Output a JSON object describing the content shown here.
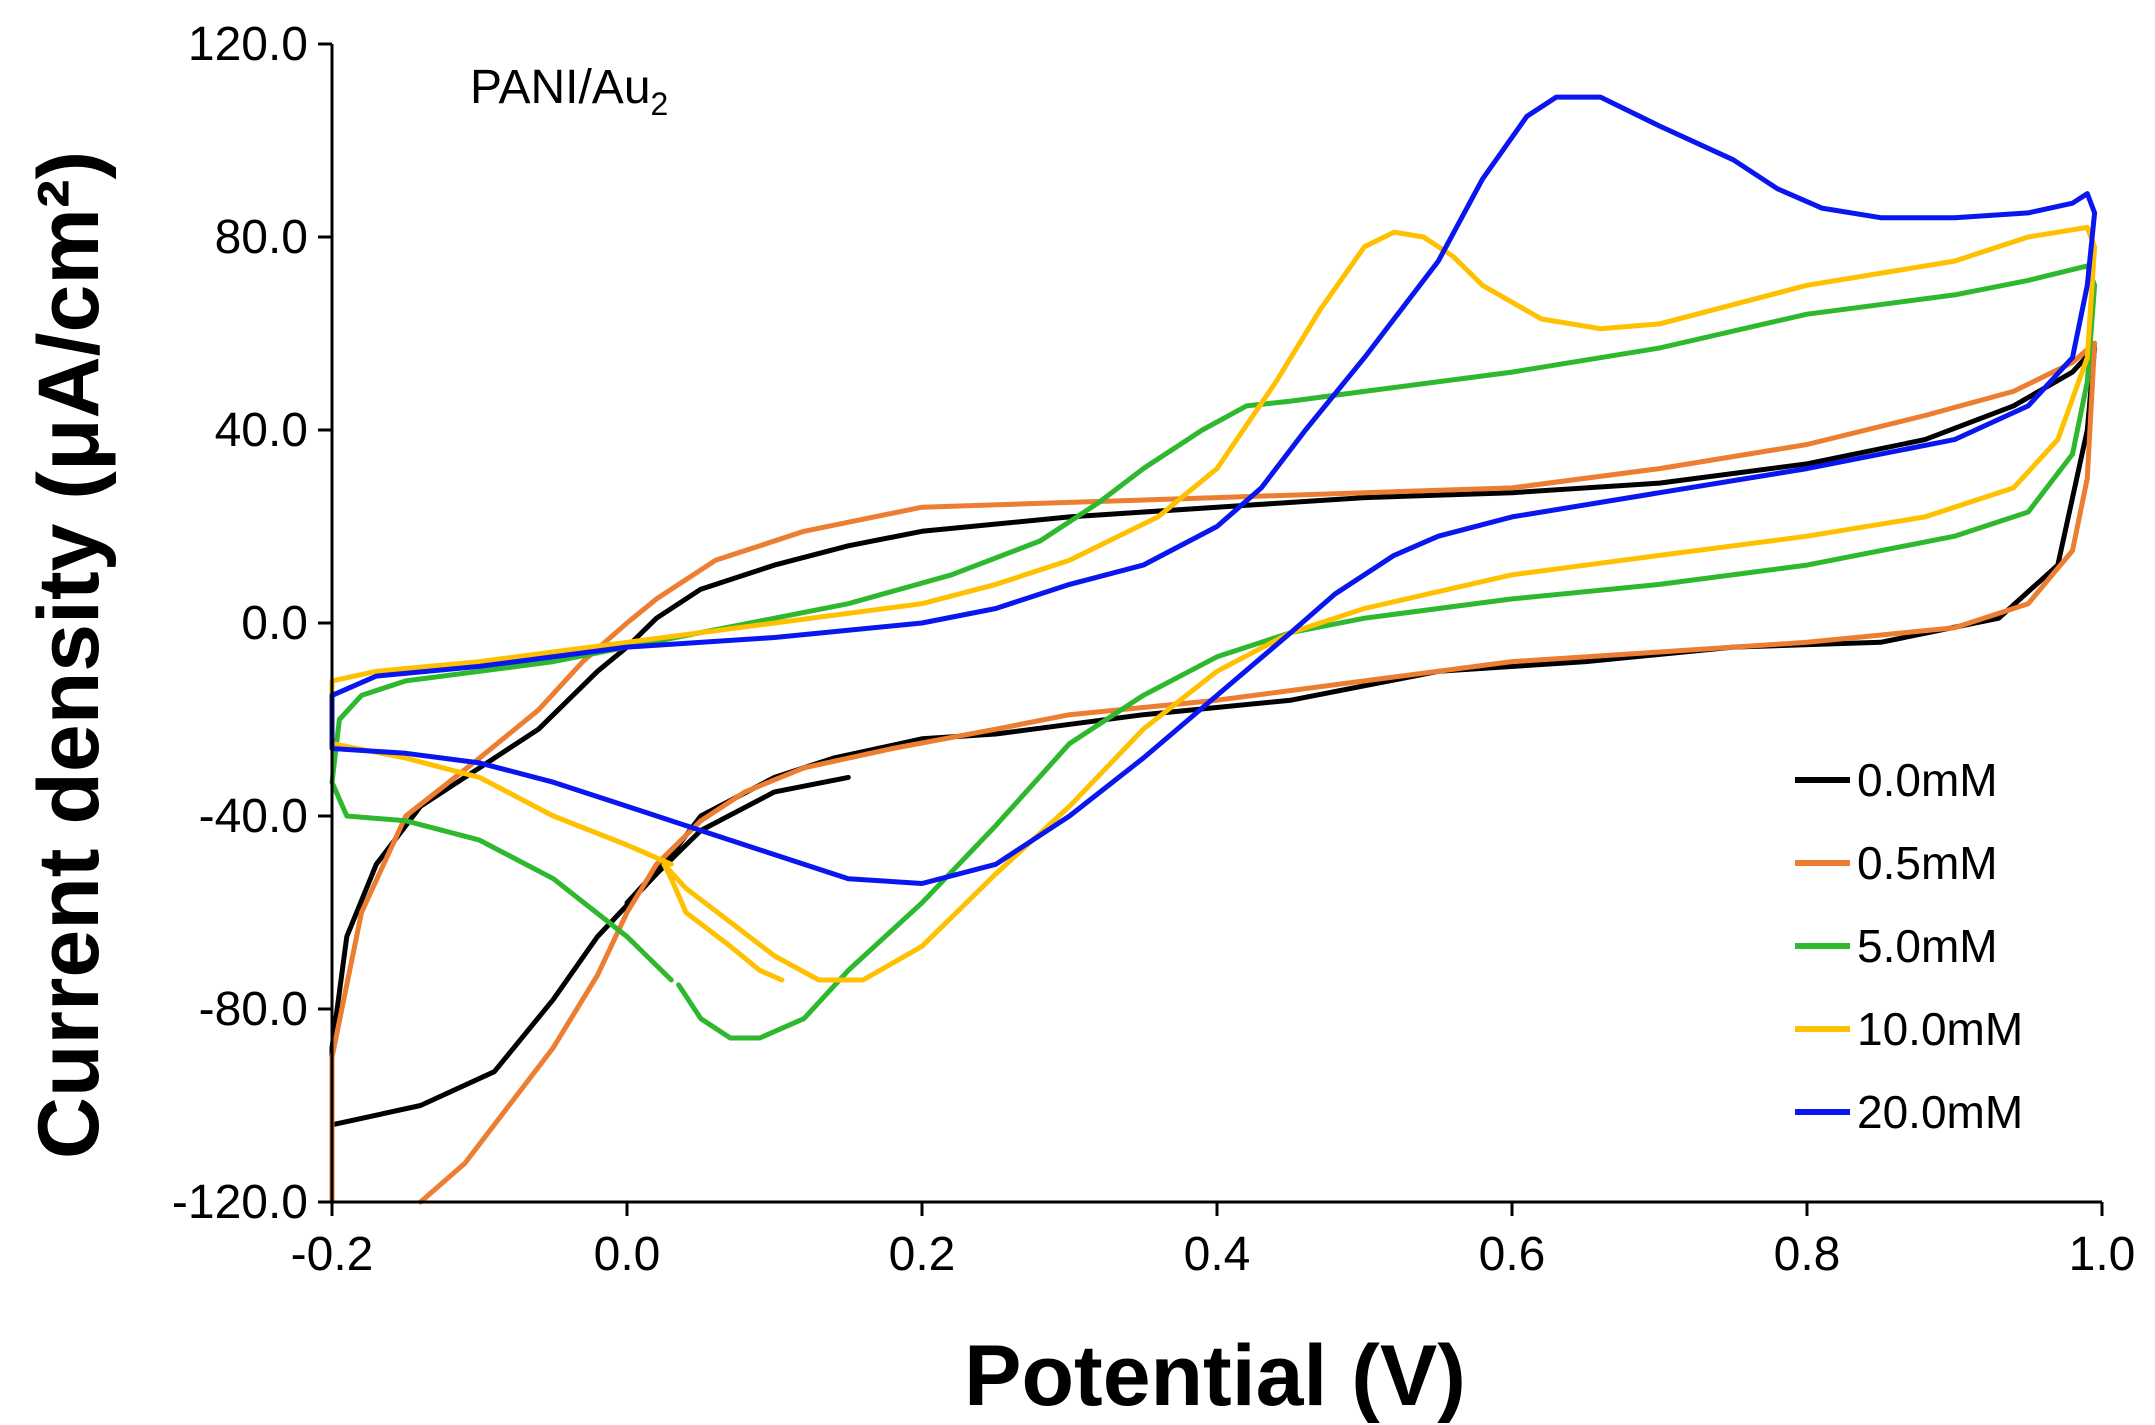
{
  "chart_data": {
    "type": "line",
    "title": "",
    "annotation": {
      "main": "PANI/Au",
      "sub": "2"
    },
    "xlabel": "Potential (V)",
    "ylabel": "Current density (μA/cm²)",
    "xlim": [
      -0.2,
      1.0
    ],
    "ylim": [
      -120,
      120
    ],
    "x_ticks": [
      -0.2,
      0.0,
      0.2,
      0.4,
      0.6,
      0.8,
      1.0
    ],
    "x_tick_labels": [
      "-0.2",
      "0.0",
      "0.2",
      "0.4",
      "0.6",
      "0.8",
      "1.0"
    ],
    "y_ticks": [
      -120,
      -80,
      -40,
      0,
      40,
      80,
      120
    ],
    "y_tick_labels": [
      "-120.0",
      "-80.0",
      "-40.0",
      "0.0",
      "40.0",
      "80.0",
      "120.0"
    ],
    "grid": false,
    "legend_position": "bottom-right",
    "series": [
      {
        "name": "0.0mM",
        "color": "#000000",
        "points": [
          [
            0.15,
            -32
          ],
          [
            0.1,
            -35
          ],
          [
            0.05,
            -43
          ],
          [
            0.02,
            -52
          ],
          [
            -0.02,
            -65
          ],
          [
            -0.05,
            -78
          ],
          [
            -0.09,
            -93
          ],
          [
            -0.14,
            -100
          ],
          [
            -0.2,
            -104
          ],
          [
            -0.2,
            -112
          ],
          [
            -0.2,
            -88
          ],
          [
            -0.19,
            -65
          ],
          [
            -0.17,
            -50
          ],
          [
            -0.14,
            -38
          ],
          [
            -0.1,
            -30
          ],
          [
            -0.06,
            -22
          ],
          [
            -0.02,
            -10
          ],
          [
            0.0,
            -5
          ],
          [
            0.02,
            1
          ],
          [
            0.05,
            7
          ],
          [
            0.1,
            12
          ],
          [
            0.15,
            16
          ],
          [
            0.2,
            19
          ],
          [
            0.3,
            22
          ],
          [
            0.4,
            24
          ],
          [
            0.5,
            26
          ],
          [
            0.6,
            27
          ],
          [
            0.7,
            29
          ],
          [
            0.8,
            33
          ],
          [
            0.88,
            38
          ],
          [
            0.94,
            45
          ],
          [
            0.98,
            52
          ],
          [
            0.995,
            57
          ],
          [
            0.99,
            40
          ],
          [
            0.97,
            12
          ],
          [
            0.93,
            1
          ],
          [
            0.85,
            -4
          ],
          [
            0.75,
            -5
          ],
          [
            0.65,
            -8
          ],
          [
            0.55,
            -10
          ],
          [
            0.45,
            -16
          ],
          [
            0.35,
            -19
          ],
          [
            0.25,
            -23
          ],
          [
            0.2,
            -24
          ],
          [
            0.14,
            -28
          ],
          [
            0.1,
            -32
          ],
          [
            0.05,
            -40
          ],
          [
            0.03,
            -48
          ],
          [
            0.0,
            -58
          ]
        ]
      },
      {
        "name": "0.5mM",
        "color": "#ED7D31",
        "points": [
          [
            -0.14,
            -120
          ],
          [
            -0.11,
            -112
          ],
          [
            -0.08,
            -100
          ],
          [
            -0.05,
            -88
          ],
          [
            -0.02,
            -73
          ],
          [
            0.0,
            -60
          ],
          [
            0.02,
            -50
          ],
          [
            0.05,
            -41
          ],
          [
            0.08,
            -35
          ],
          [
            0.12,
            -30
          ],
          [
            0.18,
            -26
          ],
          [
            0.25,
            -22
          ],
          [
            0.3,
            -19
          ],
          [
            0.4,
            -16
          ],
          [
            0.5,
            -12
          ],
          [
            0.6,
            -8
          ],
          [
            0.7,
            -6
          ],
          [
            0.8,
            -4
          ],
          [
            0.9,
            -1
          ],
          [
            0.95,
            4
          ],
          [
            0.98,
            15
          ],
          [
            0.99,
            30
          ],
          [
            0.995,
            58
          ],
          [
            0.98,
            54
          ],
          [
            0.94,
            48
          ],
          [
            0.88,
            43
          ],
          [
            0.8,
            37
          ],
          [
            0.7,
            32
          ],
          [
            0.6,
            28
          ],
          [
            0.5,
            27
          ],
          [
            0.4,
            26
          ],
          [
            0.3,
            25
          ],
          [
            0.2,
            24
          ],
          [
            0.12,
            19
          ],
          [
            0.06,
            13
          ],
          [
            0.02,
            5
          ],
          [
            0.0,
            0
          ],
          [
            -0.03,
            -8
          ],
          [
            -0.06,
            -18
          ],
          [
            -0.1,
            -28
          ],
          [
            -0.15,
            -40
          ],
          [
            -0.18,
            -60
          ],
          [
            -0.2,
            -90
          ],
          [
            -0.2,
            -120
          ]
        ]
      },
      {
        "name": "5.0mM",
        "color": "#2DB82D",
        "points": [
          [
            0.035,
            -75
          ],
          [
            0.05,
            -82
          ],
          [
            0.07,
            -86
          ],
          [
            0.09,
            -86
          ],
          [
            0.12,
            -82
          ],
          [
            0.15,
            -72
          ],
          [
            0.2,
            -58
          ],
          [
            0.25,
            -42
          ],
          [
            0.3,
            -25
          ],
          [
            0.35,
            -15
          ],
          [
            0.4,
            -7
          ],
          [
            0.45,
            -2
          ],
          [
            0.5,
            1
          ],
          [
            0.6,
            5
          ],
          [
            0.7,
            8
          ],
          [
            0.8,
            12
          ],
          [
            0.9,
            18
          ],
          [
            0.95,
            23
          ],
          [
            0.98,
            35
          ],
          [
            0.99,
            50
          ],
          [
            0.995,
            70
          ],
          [
            0.99,
            74
          ],
          [
            0.95,
            71
          ],
          [
            0.9,
            68
          ],
          [
            0.8,
            64
          ],
          [
            0.7,
            57
          ],
          [
            0.6,
            52
          ],
          [
            0.5,
            48
          ],
          [
            0.45,
            46
          ],
          [
            0.42,
            45
          ],
          [
            0.39,
            40
          ],
          [
            0.35,
            32
          ],
          [
            0.32,
            25
          ],
          [
            0.28,
            17
          ],
          [
            0.22,
            10
          ],
          [
            0.15,
            4
          ],
          [
            0.1,
            1
          ],
          [
            0.05,
            -2
          ],
          [
            0.0,
            -5
          ],
          [
            -0.05,
            -8
          ],
          [
            -0.1,
            -10
          ],
          [
            -0.15,
            -12
          ],
          [
            -0.18,
            -15
          ],
          [
            -0.195,
            -20
          ],
          [
            -0.2,
            -33
          ],
          [
            -0.19,
            -40
          ],
          [
            -0.15,
            -41
          ],
          [
            -0.1,
            -45
          ],
          [
            -0.05,
            -53
          ],
          [
            0.0,
            -65
          ],
          [
            0.03,
            -74
          ]
        ]
      },
      {
        "name": "10.0mM",
        "color": "#FFC000",
        "points": [
          [
            0.105,
            -74
          ],
          [
            0.09,
            -72
          ],
          [
            0.07,
            -67
          ],
          [
            0.04,
            -60
          ],
          [
            0.03,
            -53
          ],
          [
            0.025,
            -50
          ],
          [
            0.04,
            -55
          ],
          [
            0.07,
            -62
          ],
          [
            0.1,
            -69
          ],
          [
            0.13,
            -74
          ],
          [
            0.16,
            -74
          ],
          [
            0.2,
            -67
          ],
          [
            0.25,
            -52
          ],
          [
            0.3,
            -38
          ],
          [
            0.35,
            -22
          ],
          [
            0.4,
            -10
          ],
          [
            0.45,
            -2
          ],
          [
            0.5,
            3
          ],
          [
            0.6,
            10
          ],
          [
            0.7,
            14
          ],
          [
            0.8,
            18
          ],
          [
            0.88,
            22
          ],
          [
            0.94,
            28
          ],
          [
            0.97,
            38
          ],
          [
            0.99,
            55
          ],
          [
            0.995,
            78
          ],
          [
            0.99,
            82
          ],
          [
            0.95,
            80
          ],
          [
            0.9,
            75
          ],
          [
            0.8,
            70
          ],
          [
            0.7,
            62
          ],
          [
            0.66,
            61
          ],
          [
            0.62,
            63
          ],
          [
            0.58,
            70
          ],
          [
            0.56,
            76
          ],
          [
            0.54,
            80
          ],
          [
            0.52,
            81
          ],
          [
            0.5,
            78
          ],
          [
            0.47,
            65
          ],
          [
            0.44,
            50
          ],
          [
            0.4,
            32
          ],
          [
            0.36,
            22
          ],
          [
            0.3,
            13
          ],
          [
            0.25,
            8
          ],
          [
            0.2,
            4
          ],
          [
            0.1,
            0
          ],
          [
            0.0,
            -4
          ],
          [
            -0.1,
            -8
          ],
          [
            -0.17,
            -10
          ],
          [
            -0.2,
            -12
          ],
          [
            -0.2,
            -25
          ],
          [
            -0.15,
            -28
          ],
          [
            -0.1,
            -32
          ],
          [
            -0.05,
            -40
          ],
          [
            0.0,
            -46
          ],
          [
            0.03,
            -50
          ]
        ]
      },
      {
        "name": "20.0mM",
        "color": "#0A16F0",
        "points": [
          [
            -0.2,
            -15
          ],
          [
            -0.17,
            -11
          ],
          [
            -0.1,
            -9
          ],
          [
            0.0,
            -5
          ],
          [
            0.1,
            -3
          ],
          [
            0.2,
            0
          ],
          [
            0.25,
            3
          ],
          [
            0.3,
            8
          ],
          [
            0.35,
            12
          ],
          [
            0.4,
            20
          ],
          [
            0.43,
            28
          ],
          [
            0.46,
            40
          ],
          [
            0.5,
            55
          ],
          [
            0.55,
            75
          ],
          [
            0.58,
            92
          ],
          [
            0.61,
            105
          ],
          [
            0.63,
            109
          ],
          [
            0.66,
            109
          ],
          [
            0.7,
            103
          ],
          [
            0.75,
            96
          ],
          [
            0.78,
            90
          ],
          [
            0.81,
            86
          ],
          [
            0.85,
            84
          ],
          [
            0.9,
            84
          ],
          [
            0.95,
            85
          ],
          [
            0.98,
            87
          ],
          [
            0.99,
            89
          ],
          [
            0.995,
            85
          ],
          [
            0.99,
            70
          ],
          [
            0.98,
            55
          ],
          [
            0.95,
            45
          ],
          [
            0.9,
            38
          ],
          [
            0.8,
            32
          ],
          [
            0.7,
            27
          ],
          [
            0.6,
            22
          ],
          [
            0.55,
            18
          ],
          [
            0.52,
            14
          ],
          [
            0.48,
            6
          ],
          [
            0.45,
            -2
          ],
          [
            0.4,
            -15
          ],
          [
            0.35,
            -28
          ],
          [
            0.3,
            -40
          ],
          [
            0.25,
            -50
          ],
          [
            0.2,
            -54
          ],
          [
            0.15,
            -53
          ],
          [
            0.1,
            -48
          ],
          [
            0.05,
            -43
          ],
          [
            0.0,
            -38
          ],
          [
            -0.05,
            -33
          ],
          [
            -0.1,
            -29
          ],
          [
            -0.15,
            -27
          ],
          [
            -0.2,
            -26
          ],
          [
            -0.2,
            -15
          ]
        ]
      }
    ]
  }
}
